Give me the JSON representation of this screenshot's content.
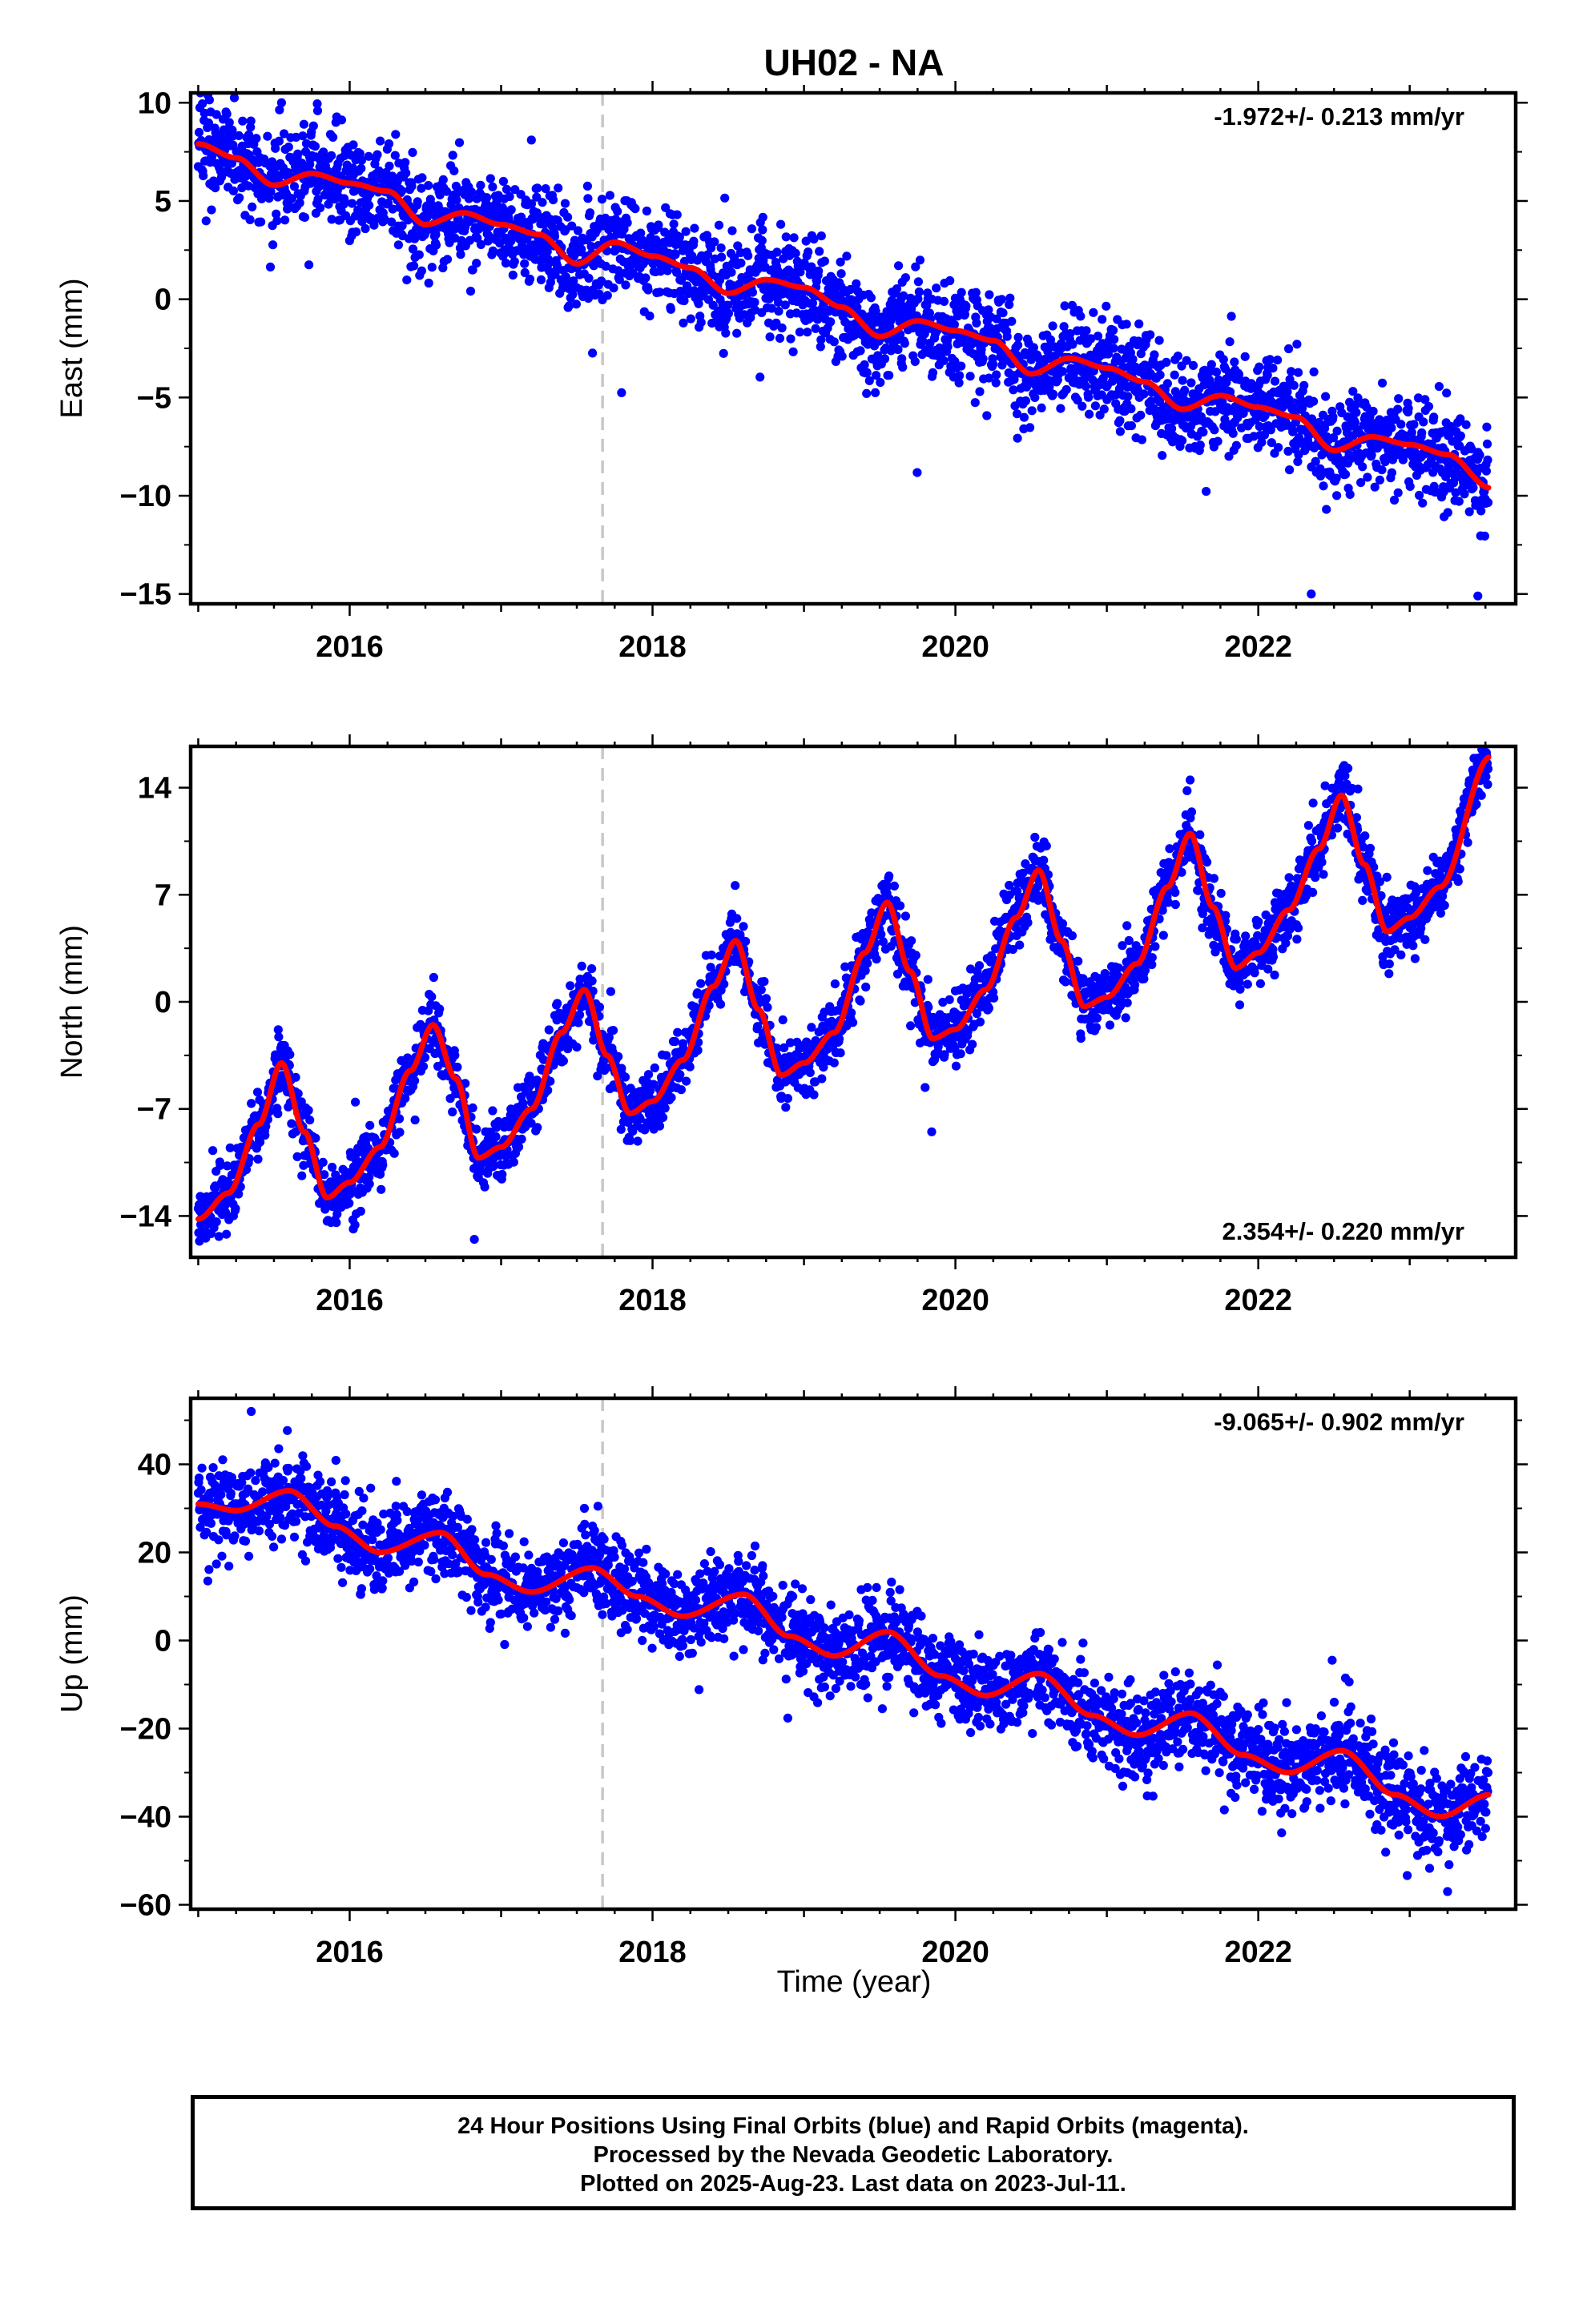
{
  "chart_data": [
    {
      "type": "scatter",
      "id": "east",
      "title": "UH02 - NA",
      "xlabel": "",
      "ylabel": "East (mm)",
      "xlim": [
        2014.95,
        2023.7
      ],
      "ylim": [
        -15.5,
        10.5
      ],
      "yticks": [
        10,
        5,
        0,
        -5,
        -10,
        -15
      ],
      "ytick_labels": [
        "10",
        "5",
        "0",
        "−5",
        "−10",
        "−15"
      ],
      "xticks": [
        2016,
        2018,
        2020,
        2022
      ],
      "xtick_labels": [
        "2016",
        "2018",
        "2020",
        "2022"
      ],
      "rate_label": "-1.972+/- 0.213 mm/yr",
      "rate_position": "top-right",
      "vline_x": 2017.67,
      "noise": 1.25,
      "fit": {
        "x": [
          2015.0,
          2015.25,
          2015.5,
          2015.75,
          2016.0,
          2016.25,
          2016.5,
          2016.75,
          2017.0,
          2017.25,
          2017.5,
          2017.75,
          2018.0,
          2018.25,
          2018.5,
          2018.75,
          2019.0,
          2019.25,
          2019.5,
          2019.75,
          2020.0,
          2020.25,
          2020.5,
          2020.75,
          2021.0,
          2021.25,
          2021.5,
          2021.75,
          2022.0,
          2022.25,
          2022.5,
          2022.75,
          2023.0,
          2023.25,
          2023.53
        ],
        "y": [
          7.9,
          7.2,
          5.8,
          6.4,
          5.9,
          5.5,
          3.8,
          4.4,
          3.8,
          3.3,
          1.8,
          2.9,
          2.2,
          1.6,
          0.3,
          1.0,
          0.6,
          -0.4,
          -1.9,
          -1.1,
          -1.6,
          -2.1,
          -3.8,
          -3.0,
          -3.5,
          -4.2,
          -5.6,
          -4.9,
          -5.5,
          -6.0,
          -7.7,
          -7.0,
          -7.4,
          -7.9,
          -9.6
        ]
      },
      "outliers": [
        [
          2022.35,
          -15.0
        ],
        [
          2023.45,
          -15.1
        ],
        [
          2015.55,
          10.0
        ],
        [
          2017.2,
          8.1
        ]
      ]
    },
    {
      "type": "scatter",
      "id": "north",
      "title": "",
      "xlabel": "",
      "ylabel": "North (mm)",
      "xlim": [
        2014.95,
        2023.7
      ],
      "ylim": [
        -16.7,
        16.7
      ],
      "yticks": [
        14,
        7,
        0,
        -7,
        -14
      ],
      "ytick_labels": [
        "14",
        "7",
        "0",
        "−7",
        "−14"
      ],
      "xticks": [
        2016,
        2018,
        2020,
        2022
      ],
      "xtick_labels": [
        "2016",
        "2018",
        "2020",
        "2022"
      ],
      "rate_label": "2.354+/- 0.220 mm/yr",
      "rate_position": "bottom-right",
      "vline_x": 2017.67,
      "noise": 1.1,
      "fit": {
        "x": [
          2015.0,
          2015.2,
          2015.4,
          2015.55,
          2015.7,
          2015.85,
          2016.0,
          2016.2,
          2016.4,
          2016.55,
          2016.7,
          2016.85,
          2017.0,
          2017.2,
          2017.4,
          2017.55,
          2017.7,
          2017.85,
          2018.0,
          2018.2,
          2018.4,
          2018.55,
          2018.7,
          2018.85,
          2019.0,
          2019.2,
          2019.4,
          2019.55,
          2019.7,
          2019.85,
          2020.0,
          2020.2,
          2020.4,
          2020.55,
          2020.7,
          2020.85,
          2021.0,
          2021.2,
          2021.4,
          2021.55,
          2021.7,
          2021.85,
          2022.0,
          2022.2,
          2022.4,
          2022.55,
          2022.7,
          2022.85,
          2023.0,
          2023.2,
          2023.53
        ],
        "y": [
          -14.2,
          -12.5,
          -8.0,
          -4.0,
          -8.5,
          -12.8,
          -11.8,
          -9.5,
          -4.5,
          -1.5,
          -5.0,
          -10.2,
          -9.5,
          -7.0,
          -2.0,
          0.8,
          -3.5,
          -7.3,
          -6.5,
          -3.8,
          1.0,
          4.0,
          -0.5,
          -4.8,
          -4.0,
          -2.0,
          3.2,
          6.5,
          2.0,
          -2.4,
          -1.8,
          0.8,
          5.5,
          8.6,
          4.0,
          -0.3,
          0.3,
          2.5,
          7.5,
          11.0,
          6.2,
          2.2,
          3.2,
          6.0,
          10.0,
          13.5,
          9.0,
          4.6,
          5.5,
          7.5,
          16.0
        ]
      },
      "outliers": [
        [
          2019.8,
          -5.6
        ],
        [
          2021.55,
          14.5
        ]
      ]
    },
    {
      "type": "scatter",
      "id": "up",
      "title": "",
      "xlabel": "Time (year)",
      "ylabel": "Up (mm)",
      "xlim": [
        2014.95,
        2023.7
      ],
      "ylim": [
        -61,
        55
      ],
      "yticks": [
        40,
        20,
        0,
        -20,
        -40,
        -60
      ],
      "ytick_labels": [
        "40",
        "20",
        "0",
        "−20",
        "−40",
        "−60"
      ],
      "xticks": [
        2016,
        2018,
        2020,
        2022
      ],
      "xtick_labels": [
        "2016",
        "2018",
        "2020",
        "2022"
      ],
      "rate_label": "-9.065+/- 0.902 mm/yr",
      "rate_position": "top-right",
      "vline_x": 2017.67,
      "noise": 5.0,
      "fit": {
        "x": [
          2015.0,
          2015.25,
          2015.6,
          2015.9,
          2016.2,
          2016.6,
          2016.9,
          2017.2,
          2017.6,
          2017.9,
          2018.2,
          2018.6,
          2018.9,
          2019.2,
          2019.55,
          2019.9,
          2020.2,
          2020.55,
          2020.9,
          2021.2,
          2021.55,
          2021.9,
          2022.2,
          2022.55,
          2022.9,
          2023.2,
          2023.53
        ],
        "y": [
          31,
          29.5,
          34,
          26,
          20,
          24.5,
          15,
          11,
          16.5,
          10,
          5.5,
          10.5,
          1,
          -3.5,
          2,
          -8,
          -12.5,
          -7.5,
          -17,
          -21.5,
          -16.5,
          -26,
          -30,
          -25,
          -35,
          -40,
          -35
        ]
      },
      "outliers": [
        [
          2015.35,
          52
        ],
        [
          2017.55,
          30
        ],
        [
          2023.25,
          -57
        ]
      ]
    }
  ],
  "footer": {
    "line1": "24 Hour Positions Using Final Orbits (blue) and Rapid Orbits (magenta).",
    "line2": "Processed by the Nevada Geodetic Laboratory.",
    "line3": "Plotted on 2025-Aug-23. Last data on 2023-Jul-11."
  },
  "colors": {
    "points": "#0000ff",
    "fit": "#ff0000",
    "vline": "#c8c8c8",
    "frame": "#000000"
  },
  "grid": false
}
